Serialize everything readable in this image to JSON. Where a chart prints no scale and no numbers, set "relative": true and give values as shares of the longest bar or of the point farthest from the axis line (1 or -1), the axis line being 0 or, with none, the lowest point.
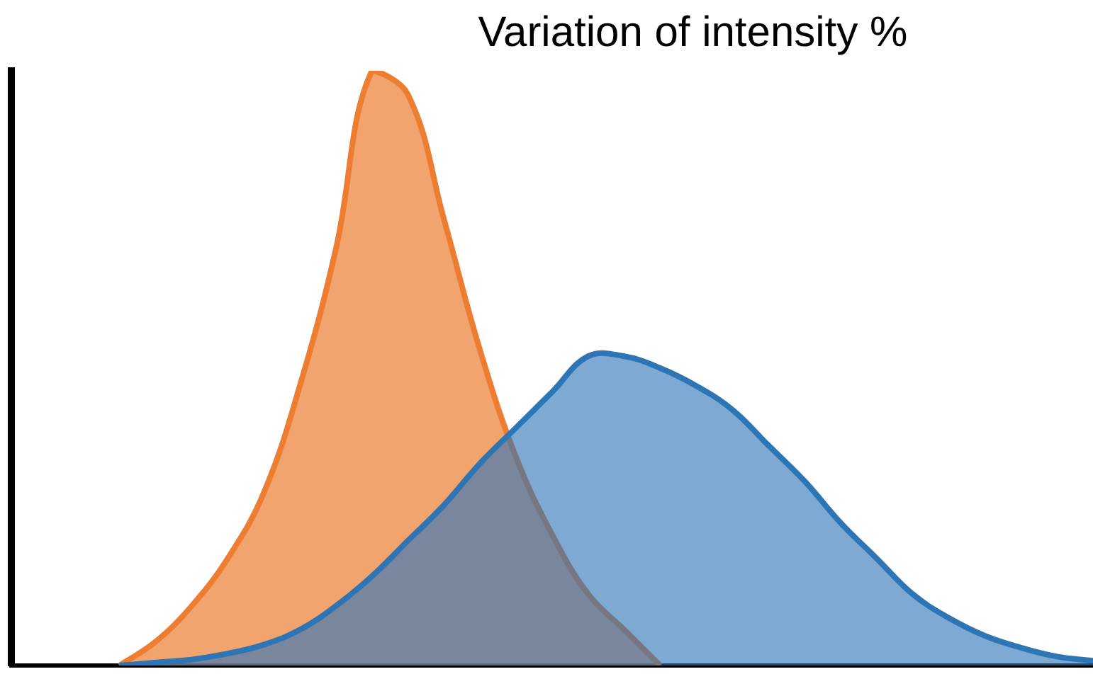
{
  "chart_data": {
    "type": "area",
    "title": "Variation of intensity %",
    "relative": true,
    "legend": false,
    "grid": false,
    "categories": [
      null,
      null,
      null,
      null,
      null,
      null,
      null,
      null,
      null,
      null,
      null,
      null,
      null,
      null,
      null,
      null,
      null,
      null,
      null,
      null,
      null,
      null,
      null,
      null,
      null,
      null,
      null,
      null,
      null,
      null,
      null
    ],
    "series": [
      {
        "color": "#2e75b6",
        "values": [
          null,
          null,
          null,
          0,
          0.005,
          0.01,
          0.02,
          0.035,
          0.06,
          0.1,
          0.15,
          0.21,
          0.27,
          0.34,
          0.4,
          0.46,
          0.52,
          0.52,
          0.5,
          0.47,
          0.43,
          0.37,
          0.31,
          0.24,
          0.18,
          0.12,
          0.08,
          0.05,
          0.03,
          0.015,
          0.008
        ]
      },
      {
        "color": "#ed7d31",
        "values": [
          null,
          null,
          null,
          0,
          0.04,
          0.1,
          0.18,
          0.29,
          0.47,
          0.7,
          1,
          0.96,
          0.75,
          0.53,
          0.35,
          0.22,
          0.12,
          0.06,
          0,
          null,
          null,
          null,
          null,
          null,
          null,
          null,
          null,
          null,
          null,
          null,
          null
        ]
      }
    ]
  }
}
